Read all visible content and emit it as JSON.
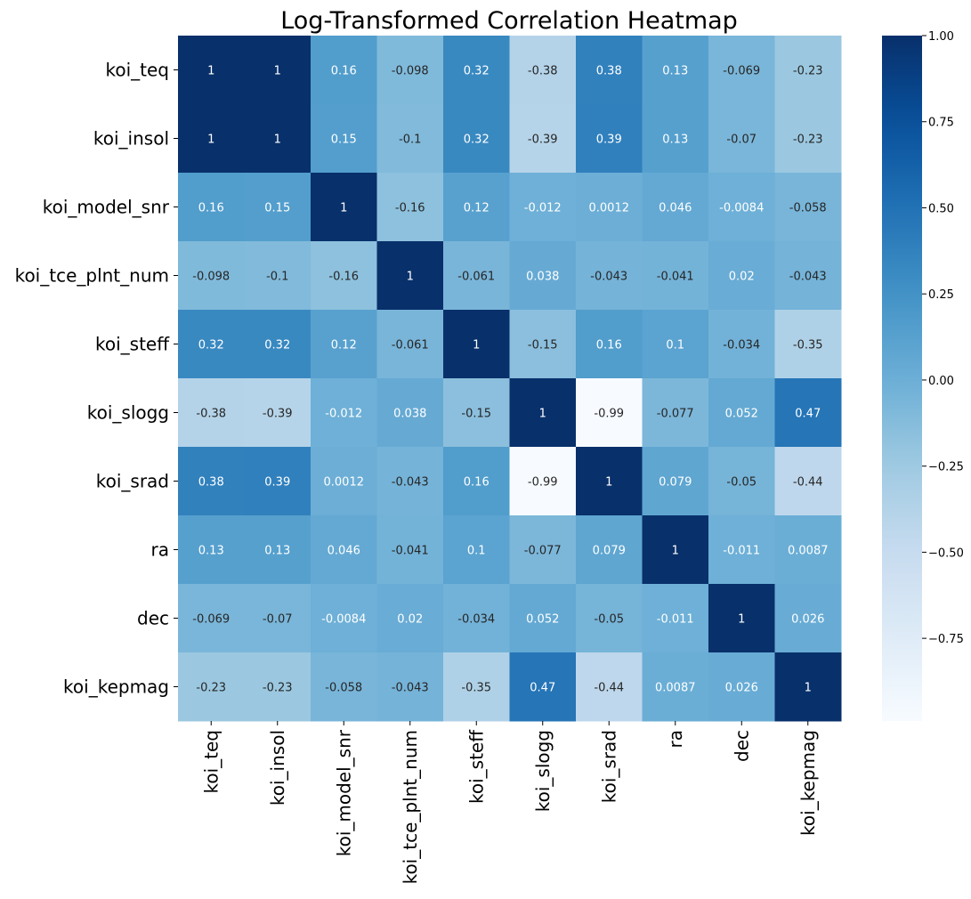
{
  "chart_data": {
    "type": "heatmap",
    "title": "Log-Transformed Correlation Heatmap",
    "labels": [
      "koi_teq",
      "koi_insol",
      "koi_model_snr",
      "koi_tce_plnt_num",
      "koi_steff",
      "koi_slogg",
      "koi_srad",
      "ra",
      "dec",
      "koi_kepmag"
    ],
    "values": [
      [
        "1",
        "1",
        "0.16",
        "-0.098",
        "0.32",
        "-0.38",
        "0.38",
        "0.13",
        "-0.069",
        "-0.23"
      ],
      [
        "1",
        "1",
        "0.15",
        "-0.1",
        "0.32",
        "-0.39",
        "0.39",
        "0.13",
        "-0.07",
        "-0.23"
      ],
      [
        "0.16",
        "0.15",
        "1",
        "-0.16",
        "0.12",
        "-0.012",
        "0.0012",
        "0.046",
        "-0.0084",
        "-0.058"
      ],
      [
        "-0.098",
        "-0.1",
        "-0.16",
        "1",
        "-0.061",
        "0.038",
        "-0.043",
        "-0.041",
        "0.02",
        "-0.043"
      ],
      [
        "0.32",
        "0.32",
        "0.12",
        "-0.061",
        "1",
        "-0.15",
        "0.16",
        "0.1",
        "-0.034",
        "-0.35"
      ],
      [
        "-0.38",
        "-0.39",
        "-0.012",
        "0.038",
        "-0.15",
        "1",
        "-0.99",
        "-0.077",
        "0.052",
        "0.47"
      ],
      [
        "0.38",
        "0.39",
        "0.0012",
        "-0.043",
        "0.16",
        "-0.99",
        "1",
        "0.079",
        "-0.05",
        "-0.44"
      ],
      [
        "0.13",
        "0.13",
        "0.046",
        "-0.041",
        "0.1",
        "-0.077",
        "0.079",
        "1",
        "-0.011",
        "0.0087"
      ],
      [
        "-0.069",
        "-0.07",
        "-0.0084",
        "0.02",
        "-0.034",
        "0.052",
        "-0.05",
        "-0.011",
        "1",
        "0.026"
      ],
      [
        "-0.23",
        "-0.23",
        "-0.058",
        "-0.043",
        "-0.35",
        "0.47",
        "-0.44",
        "0.0087",
        "0.026",
        "1"
      ]
    ],
    "colormap": "Blues",
    "vmin": -0.99,
    "vmax": 1.0,
    "colorbar_ticks": [
      "1.00",
      "0.75",
      "0.50",
      "0.25",
      "0.00",
      "−0.25",
      "−0.50",
      "−0.75"
    ],
    "colorbar_tick_values": [
      1.0,
      0.75,
      0.5,
      0.25,
      0.0,
      -0.25,
      -0.5,
      -0.75
    ]
  }
}
